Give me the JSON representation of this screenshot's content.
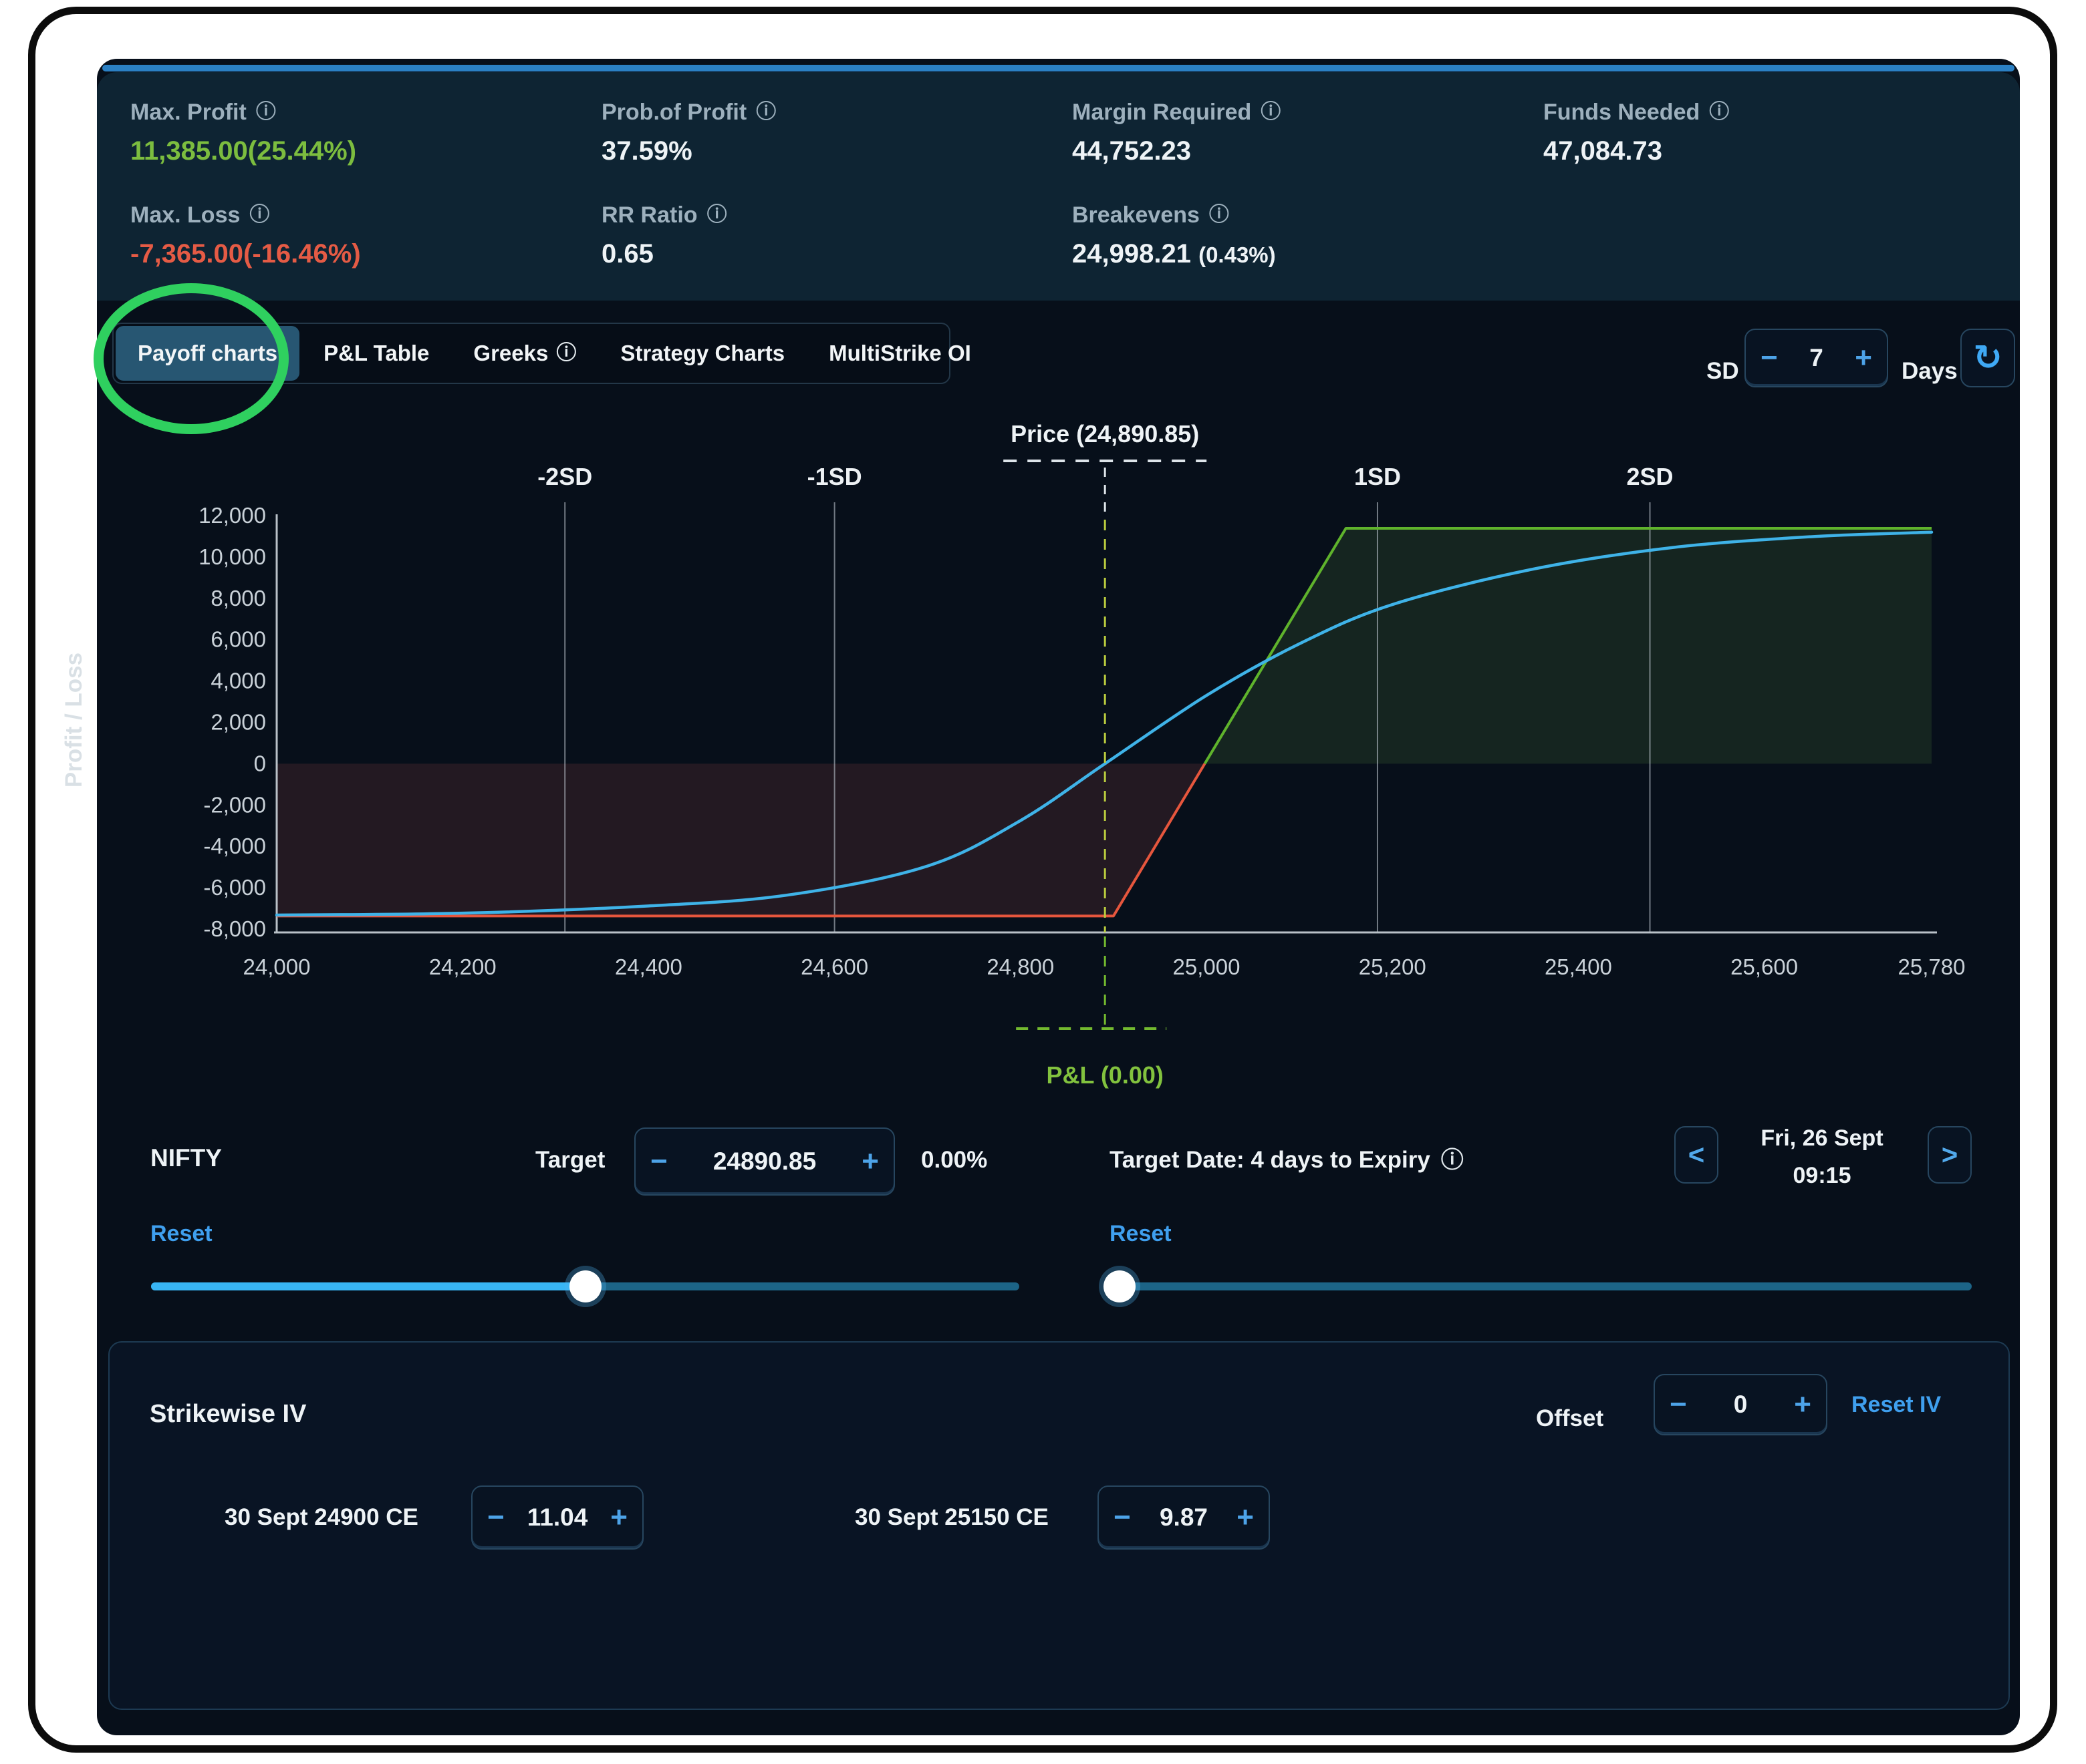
{
  "icons": {
    "info": "ⓘ",
    "refresh": "↻",
    "chevron_left": "<",
    "chevron_right": ">",
    "minus": "−",
    "plus": "+"
  },
  "stats": {
    "items": [
      {
        "label": "Max. Profit",
        "value": "11,385.00(25.44%)",
        "tone": "green"
      },
      {
        "label": "Prob.of Profit",
        "value": "37.59%",
        "tone": "white"
      },
      {
        "label": "Margin Required",
        "value": "44,752.23",
        "tone": "white"
      },
      {
        "label": "Funds Needed",
        "value": "47,084.73",
        "tone": "white"
      },
      {
        "label": "Max. Loss",
        "value": "-7,365.00(-16.46%)",
        "tone": "red"
      },
      {
        "label": "RR Ratio",
        "value": "0.65",
        "tone": "white"
      },
      {
        "label": "Breakevens",
        "value": "24,998.21",
        "value_suffix": "(0.43%)",
        "tone": "white"
      }
    ]
  },
  "tabs": {
    "items": [
      {
        "label": "Payoff charts",
        "active": true
      },
      {
        "label": "P&L Table"
      },
      {
        "label": "Greeks",
        "has_info": true
      },
      {
        "label": "Strategy Charts"
      },
      {
        "label": "MultiStrike OI"
      }
    ]
  },
  "sd_control": {
    "label": "SD",
    "value": "7",
    "days_label": "Days"
  },
  "chart_data": {
    "type": "line",
    "ylabel": "Profit / Loss",
    "axis_range": {
      "x": [
        24000,
        25780
      ],
      "y": [
        -8000,
        12000
      ]
    },
    "x_ticks": [
      {
        "v": 24000,
        "label": "24,000"
      },
      {
        "v": 24200,
        "label": "24,200"
      },
      {
        "v": 24400,
        "label": "24,400"
      },
      {
        "v": 24600,
        "label": "24,600"
      },
      {
        "v": 24800,
        "label": "24,800"
      },
      {
        "v": 25000,
        "label": "25,000"
      },
      {
        "v": 25200,
        "label": "25,200"
      },
      {
        "v": 25400,
        "label": "25,400"
      },
      {
        "v": 25600,
        "label": "25,600"
      },
      {
        "v": 25780,
        "label": "25,780"
      }
    ],
    "y_ticks": [
      {
        "v": 12000,
        "label": "12,000"
      },
      {
        "v": 10000,
        "label": "10,000"
      },
      {
        "v": 8000,
        "label": "8,000"
      },
      {
        "v": 6000,
        "label": "6,000"
      },
      {
        "v": 4000,
        "label": "4,000"
      },
      {
        "v": 2000,
        "label": "2,000"
      },
      {
        "v": 0,
        "label": "0"
      },
      {
        "v": -2000,
        "label": "-2,000"
      },
      {
        "v": -4000,
        "label": "-4,000"
      },
      {
        "v": -6000,
        "label": "-6,000"
      },
      {
        "v": -8000,
        "label": "-8,000"
      }
    ],
    "sd_markers": [
      {
        "label": "-2SD",
        "price": 24310
      },
      {
        "label": "-1SD",
        "price": 24600
      },
      {
        "label": "1SD",
        "price": 25184
      },
      {
        "label": "2SD",
        "price": 25477
      }
    ],
    "price_marker": {
      "label": "Price (24,890.85)",
      "price": 24890.85
    },
    "pnl_marker": {
      "label": "P&L (0.00)"
    },
    "max_profit": 11385,
    "max_loss": -7365,
    "breakeven": 24998.21,
    "series": [
      {
        "name": "expiry-payoff-loss",
        "color": "#e6563d",
        "points": [
          [
            24000,
            -7365
          ],
          [
            24900,
            -7365
          ],
          [
            24998.21,
            0
          ]
        ]
      },
      {
        "name": "expiry-payoff-profit",
        "color": "#5fb32c",
        "points": [
          [
            24998.21,
            0
          ],
          [
            25150,
            11385
          ],
          [
            25780,
            11385
          ]
        ]
      },
      {
        "name": "t0-pnl",
        "color": "#3fb3e8",
        "smooth": true,
        "points": [
          [
            24000,
            -7320
          ],
          [
            24200,
            -7230
          ],
          [
            24400,
            -6880
          ],
          [
            24550,
            -6350
          ],
          [
            24700,
            -4950
          ],
          [
            24800,
            -2750
          ],
          [
            24890.85,
            0
          ],
          [
            25000,
            3300
          ],
          [
            25100,
            5800
          ],
          [
            25200,
            7700
          ],
          [
            25350,
            9400
          ],
          [
            25500,
            10450
          ],
          [
            25650,
            10980
          ],
          [
            25780,
            11200
          ]
        ]
      }
    ],
    "fills": [
      {
        "name": "loss-region",
        "color": "rgba(205,95,85,0.14)",
        "points": [
          [
            24000,
            0
          ],
          [
            24998.21,
            0
          ],
          [
            24900,
            -7365
          ],
          [
            24000,
            -7365
          ]
        ]
      },
      {
        "name": "profit-region",
        "color": "rgba(105,170,70,0.15)",
        "points": [
          [
            24998.21,
            0
          ],
          [
            25150,
            11385
          ],
          [
            25780,
            11385
          ],
          [
            25780,
            0
          ]
        ]
      }
    ]
  },
  "target_controls": {
    "instrument": "NIFTY",
    "reset_label": "Reset",
    "target_label": "Target",
    "target_value": "24890.85",
    "target_change_pct": "0.00%",
    "target_slider_percent": 50,
    "date_label": "Target Date: 4 days to Expiry",
    "date_reset_label": "Reset",
    "date_value_line1": "Fri, 26 Sept",
    "date_value_line2": "09:15",
    "date_slider_percent": 1
  },
  "strikewise": {
    "title": "Strikewise IV",
    "offset_label": "Offset",
    "offset_value": "0",
    "reset_label": "Reset IV",
    "rows": [
      {
        "label": "30 Sept 24900 CE",
        "value": "11.04"
      },
      {
        "label": "30 Sept 25150 CE",
        "value": "9.87"
      }
    ]
  }
}
